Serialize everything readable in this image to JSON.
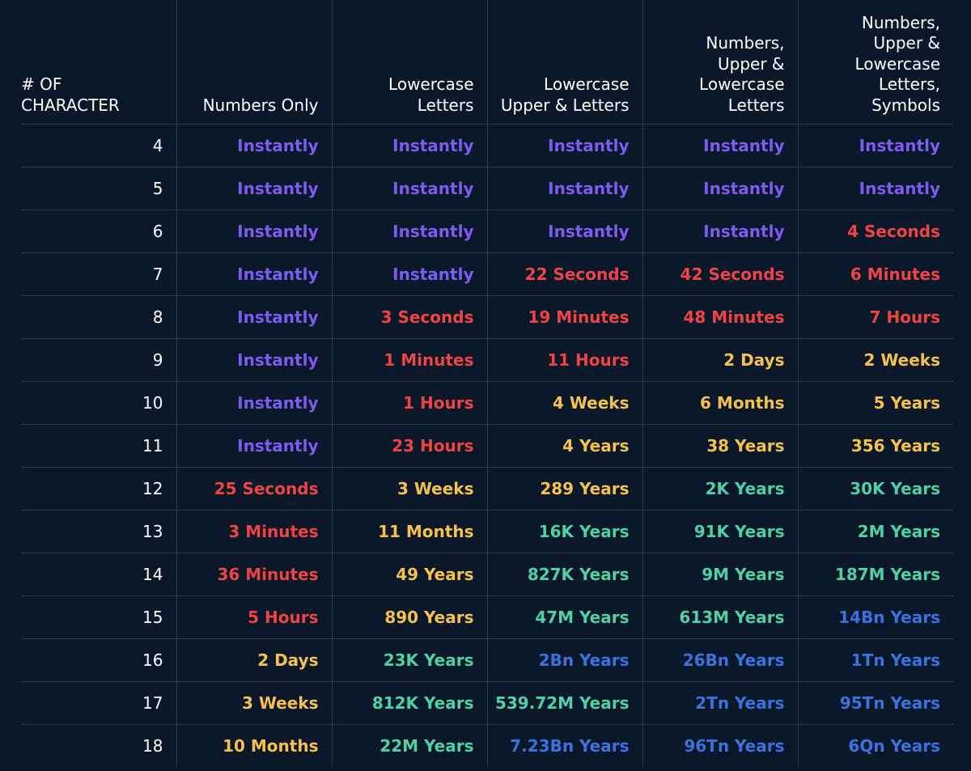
{
  "colors": {
    "background": "#0b1829",
    "grid": "#2a3a52",
    "instantly": "#7b5cf0",
    "seconds_hours": "#ef4444",
    "days_years": "#f5c04f",
    "thousands_millions_years": "#4fd1a5",
    "billions_plus_years": "#3a73e0",
    "text": "#ffffff"
  },
  "chart_data": {
    "type": "table",
    "columns": [
      [
        "# OF",
        "CHARACTER"
      ],
      [
        "Numbers Only"
      ],
      [
        "Lowercase",
        "Letters"
      ],
      [
        "Lowercase",
        "Upper & Letters"
      ],
      [
        "Numbers,",
        "Upper &",
        "Lowercase",
        "Letters"
      ],
      [
        "Numbers,",
        "Upper &",
        "Lowercase",
        "Letters,",
        "Symbols"
      ]
    ],
    "rows": [
      [
        "4",
        "Instantly",
        "Instantly",
        "Instantly",
        "Instantly",
        "Instantly"
      ],
      [
        "5",
        "Instantly",
        "Instantly",
        "Instantly",
        "Instantly",
        "Instantly"
      ],
      [
        "6",
        "Instantly",
        "Instantly",
        "Instantly",
        "Instantly",
        "4 Seconds"
      ],
      [
        "7",
        "Instantly",
        "Instantly",
        "22 Seconds",
        "42 Seconds",
        "6 Minutes"
      ],
      [
        "8",
        "Instantly",
        "3 Seconds",
        "19 Minutes",
        "48 Minutes",
        "7 Hours"
      ],
      [
        "9",
        "Instantly",
        "1 Minutes",
        "11 Hours",
        "2 Days",
        "2 Weeks"
      ],
      [
        "10",
        "Instantly",
        "1 Hours",
        "4 Weeks",
        "6 Months",
        "5 Years"
      ],
      [
        "11",
        "Instantly",
        "23 Hours",
        "4 Years",
        "38 Years",
        "356 Years"
      ],
      [
        "12",
        "25 Seconds",
        "3 Weeks",
        "289 Years",
        "2K Years",
        "30K Years"
      ],
      [
        "13",
        "3 Minutes",
        "11 Months",
        "16K Years",
        "91K Years",
        "2M Years"
      ],
      [
        "14",
        "36 Minutes",
        "49 Years",
        "827K Years",
        "9M Years",
        "187M Years"
      ],
      [
        "15",
        "5 Hours",
        "890 Years",
        "47M Years",
        "613M Years",
        "14Bn Years"
      ],
      [
        "16",
        "2 Days",
        "23K Years",
        "2Bn Years",
        "26Bn Years",
        "1Tn Years"
      ],
      [
        "17",
        "3 Weeks",
        "812K Years",
        "539.72M Years",
        "2Tn Years",
        "95Tn Years"
      ],
      [
        "18",
        "10 Months",
        "22M Years",
        "7.23Bn Years",
        "96Tn Years",
        "6Qn Years"
      ]
    ],
    "cell_tiers": [
      [
        0,
        0,
        0,
        0,
        0
      ],
      [
        0,
        0,
        0,
        0,
        0
      ],
      [
        0,
        0,
        0,
        0,
        1
      ],
      [
        0,
        0,
        1,
        1,
        1
      ],
      [
        0,
        1,
        1,
        1,
        1
      ],
      [
        0,
        1,
        1,
        2,
        2
      ],
      [
        0,
        1,
        2,
        2,
        2
      ],
      [
        0,
        1,
        2,
        2,
        2
      ],
      [
        1,
        2,
        2,
        3,
        3
      ],
      [
        1,
        2,
        3,
        3,
        3
      ],
      [
        1,
        2,
        3,
        3,
        3
      ],
      [
        1,
        2,
        3,
        3,
        4
      ],
      [
        2,
        3,
        4,
        4,
        4
      ],
      [
        2,
        3,
        3,
        4,
        4
      ],
      [
        2,
        3,
        4,
        4,
        4
      ]
    ],
    "tier_colors": [
      "#7b5cf0",
      "#ef4444",
      "#f5c04f",
      "#4fd1a5",
      "#3a73e0"
    ]
  }
}
